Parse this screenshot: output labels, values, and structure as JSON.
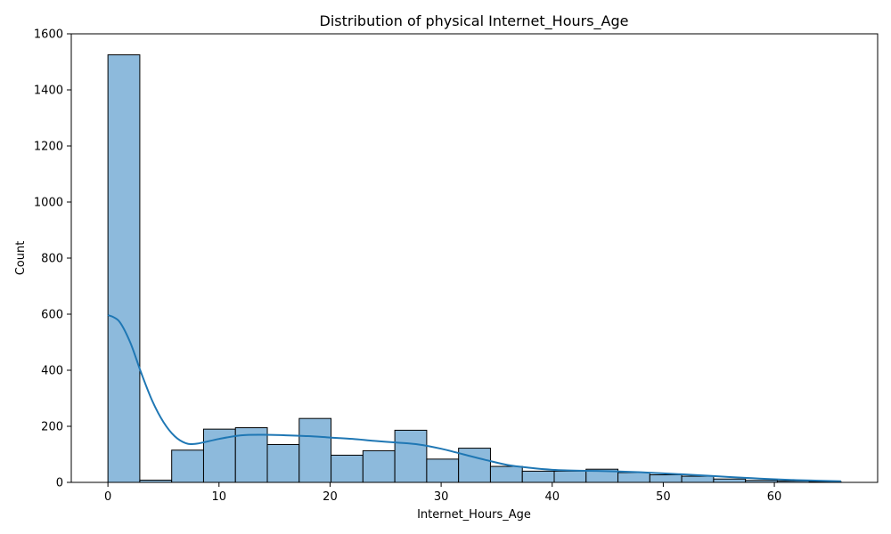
{
  "chart_data": {
    "type": "bar",
    "title": "Distribution of physical Internet_Hours_Age",
    "xlabel": "Internet_Hours_Age",
    "ylabel": "Count",
    "xlim": [
      -3.3,
      69.3
    ],
    "ylim": [
      0,
      1600
    ],
    "x_ticks": [
      0,
      10,
      20,
      30,
      40,
      50,
      60
    ],
    "y_ticks": [
      0,
      200,
      400,
      600,
      800,
      1000,
      1200,
      1400,
      1600
    ],
    "bin_edges": [
      0,
      2.87,
      5.74,
      8.61,
      11.48,
      14.35,
      17.22,
      20.09,
      22.96,
      25.83,
      28.7,
      31.57,
      34.44,
      37.31,
      40.18,
      43.05,
      45.92,
      48.79,
      51.66,
      54.53,
      57.4,
      60.27,
      63.14,
      66.0
    ],
    "values": [
      1525,
      8,
      115,
      190,
      195,
      135,
      228,
      97,
      113,
      186,
      83,
      122,
      57,
      40,
      40,
      47,
      35,
      27,
      22,
      12,
      7,
      5,
      3
    ],
    "kde": {
      "x": [
        0,
        1,
        2,
        3,
        4,
        5,
        6,
        7,
        8,
        10,
        12,
        14,
        16,
        18,
        20,
        22,
        24,
        26,
        28,
        30,
        32,
        34,
        36,
        38,
        40,
        42,
        44,
        46,
        48,
        50,
        52,
        54,
        56,
        58,
        60,
        62,
        64,
        66
      ],
      "y": [
        597,
        575,
        500,
        390,
        290,
        215,
        165,
        140,
        138,
        155,
        168,
        170,
        168,
        165,
        160,
        155,
        148,
        142,
        135,
        120,
        100,
        80,
        62,
        52,
        45,
        42,
        41,
        39,
        36,
        32,
        28,
        24,
        19,
        15,
        11,
        8,
        6,
        4
      ]
    },
    "grid": false,
    "colors": {
      "bar_fill": "#8dbadc",
      "bar_edge": "#000000",
      "kde_line": "#1f77b4"
    }
  }
}
